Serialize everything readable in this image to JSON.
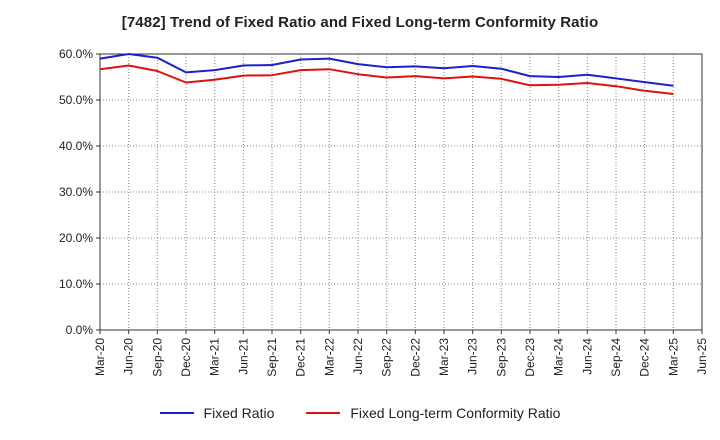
{
  "chart_data": {
    "type": "line",
    "title": "[7482]  Trend of Fixed Ratio and Fixed Long-term Conformity Ratio",
    "xlabel": "",
    "ylabel": "",
    "ylim": [
      0,
      60
    ],
    "yticks": [
      "0.0%",
      "10.0%",
      "20.0%",
      "30.0%",
      "40.0%",
      "50.0%",
      "60.0%"
    ],
    "x": [
      "Mar-20",
      "Jun-20",
      "Sep-20",
      "Dec-20",
      "Mar-21",
      "Jun-21",
      "Sep-21",
      "Dec-21",
      "Mar-22",
      "Jun-22",
      "Sep-22",
      "Dec-22",
      "Mar-23",
      "Jun-23",
      "Sep-23",
      "Dec-23",
      "Mar-24",
      "Jun-24",
      "Sep-24",
      "Dec-24",
      "Mar-25",
      "Jun-25"
    ],
    "grid": true,
    "legend_position": "bottom",
    "series": [
      {
        "name": "Fixed Ratio",
        "color": "#1f1fcc",
        "values": [
          59.0,
          60.0,
          59.2,
          56.0,
          56.5,
          57.5,
          57.6,
          58.8,
          59.0,
          57.8,
          57.1,
          57.3,
          56.9,
          57.4,
          56.8,
          55.2,
          55.0,
          55.5,
          54.7,
          53.9,
          53.1,
          null
        ]
      },
      {
        "name": "Fixed Long-term Conformity Ratio",
        "color": "#e01010",
        "values": [
          56.7,
          57.5,
          56.3,
          53.8,
          54.4,
          55.3,
          55.4,
          56.5,
          56.7,
          55.6,
          54.9,
          55.2,
          54.7,
          55.1,
          54.6,
          53.2,
          53.3,
          53.7,
          53.0,
          52.0,
          51.3,
          null
        ]
      }
    ]
  }
}
